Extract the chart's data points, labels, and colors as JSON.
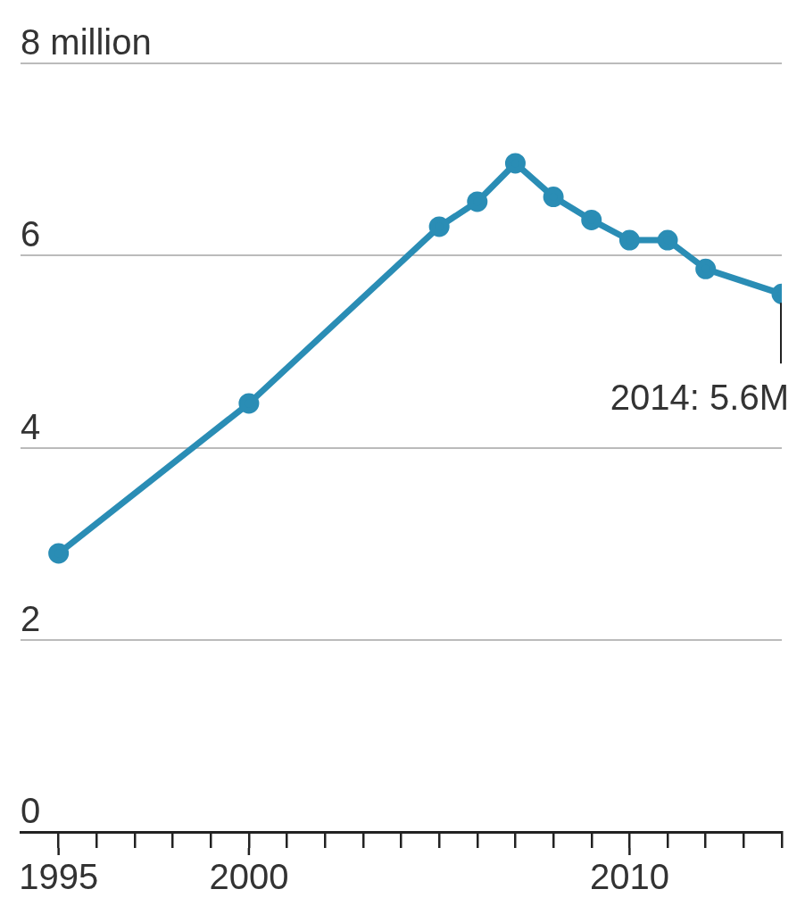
{
  "chart_data": {
    "type": "line",
    "x": [
      1995,
      2000,
      2005,
      2006,
      2007,
      2008,
      2009,
      2010,
      2011,
      2012,
      2014
    ],
    "series": [
      {
        "color": "#2a8db5",
        "values": [
          2.9,
          4.46,
          6.3,
          6.56,
          6.96,
          6.61,
          6.37,
          6.16,
          6.16,
          5.86,
          5.6
        ]
      }
    ],
    "xlim": [
      1994,
      2014
    ],
    "xticks": [
      {
        "value": 1995,
        "label": "1995"
      },
      {
        "value": 1996,
        "label": null
      },
      {
        "value": 1997,
        "label": null
      },
      {
        "value": 1998,
        "label": null
      },
      {
        "value": 1999,
        "label": null
      },
      {
        "value": 2000,
        "label": "2000"
      },
      {
        "value": 2001,
        "label": null
      },
      {
        "value": 2002,
        "label": null
      },
      {
        "value": 2003,
        "label": null
      },
      {
        "value": 2004,
        "label": null
      },
      {
        "value": 2005,
        "label": null
      },
      {
        "value": 2006,
        "label": null
      },
      {
        "value": 2007,
        "label": null
      },
      {
        "value": 2008,
        "label": null
      },
      {
        "value": 2009,
        "label": null
      },
      {
        "value": 2010,
        "label": "2010"
      },
      {
        "value": 2011,
        "label": null
      },
      {
        "value": 2012,
        "label": null
      },
      {
        "value": 2013,
        "label": null
      },
      {
        "value": 2014,
        "label": null
      }
    ],
    "ylim": [
      0,
      8
    ],
    "yticks": [
      0,
      2,
      4,
      6,
      {
        "value": 8,
        "label": "8 million"
      }
    ],
    "grid": "y",
    "marker": "circle",
    "line_style": "solid",
    "annotations": [
      {
        "text": "2014: 5.6M",
        "x": 2014,
        "y": 5.6
      }
    ]
  }
}
